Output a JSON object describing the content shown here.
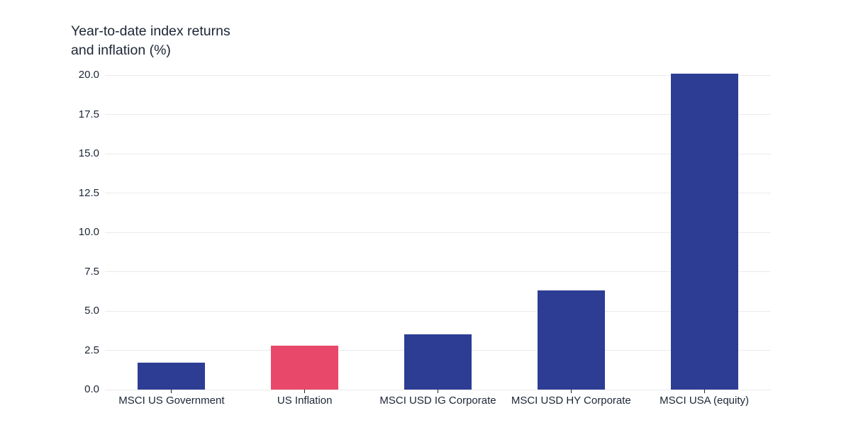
{
  "display_title": "Year-to-date index returns\nand inflation (%)",
  "chart_data": {
    "type": "bar",
    "title": "Year-to-date index returns and inflation (%)",
    "categories": [
      "MSCI US Government",
      "US Inflation",
      "MSCI USD IG Corporate",
      "MSCI USD HY Corporate",
      "MSCI USA (equity)"
    ],
    "values": [
      1.7,
      2.8,
      3.5,
      6.3,
      20.1
    ],
    "bar_colors": [
      "#2d3d94",
      "#e8486a",
      "#2d3d94",
      "#2d3d94",
      "#2d3d94"
    ],
    "xlabel": "",
    "ylabel": "",
    "ylim": [
      0,
      20
    ],
    "yticks": [
      0.0,
      2.5,
      5.0,
      7.5,
      10.0,
      12.5,
      15.0,
      17.5,
      20.0
    ],
    "ytick_labels": [
      "0.0",
      "2.5",
      "5.0",
      "7.5",
      "10.0",
      "12.5",
      "15.0",
      "17.5",
      "20.0"
    ],
    "grid": true,
    "legend": false
  },
  "colors": {
    "bar_default": "#2d3d94",
    "bar_highlight": "#e8486a",
    "grid": "#ebebeb",
    "text": "#1c2636",
    "background": "#ffffff"
  }
}
